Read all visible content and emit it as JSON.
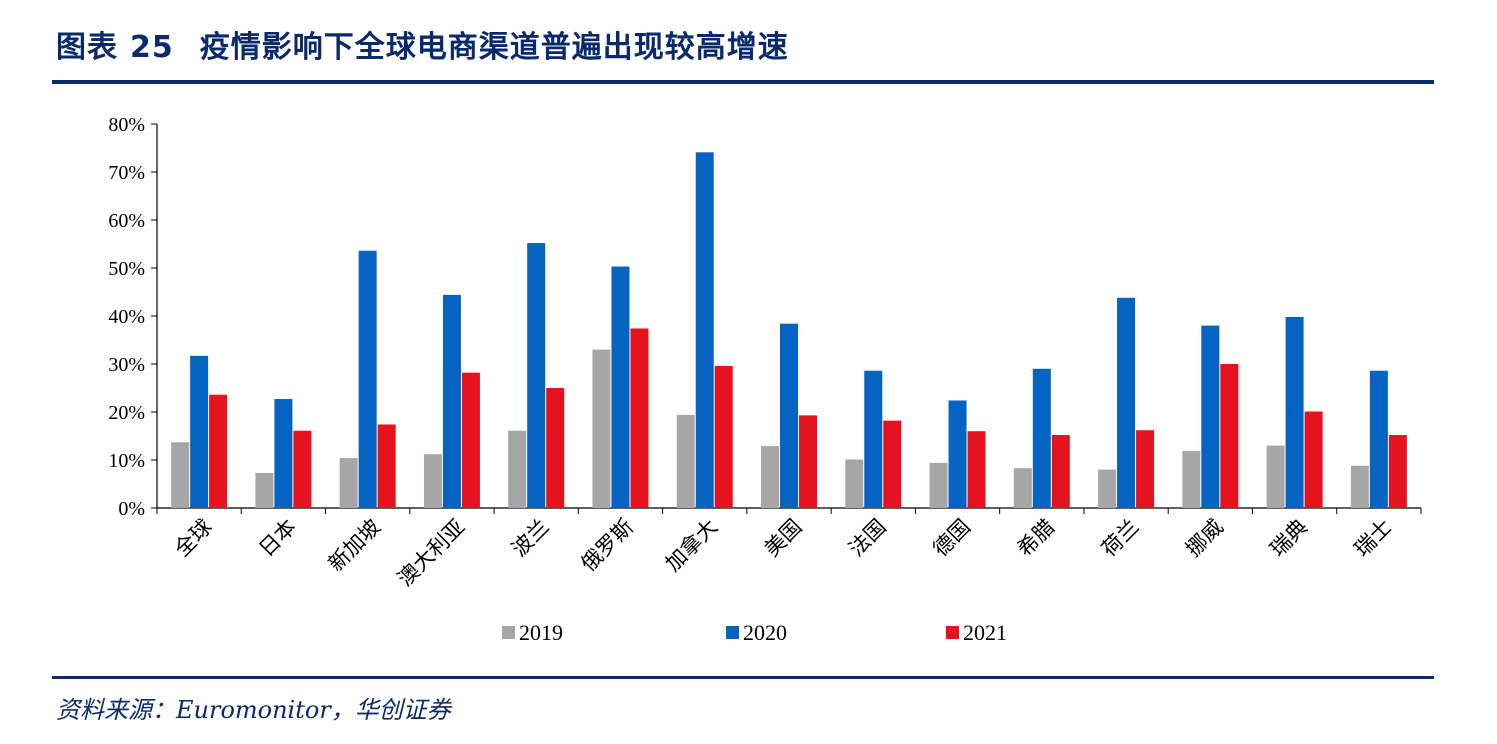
{
  "header": {
    "figure_label": "图表",
    "figure_number": "25",
    "title": "疫情影响下全球电商渠道普遍出现较高增速"
  },
  "footer": {
    "source": "资料来源：Euromonitor，华创证券"
  },
  "chart_data": {
    "type": "bar",
    "categories": [
      "全球",
      "日本",
      "新加坡",
      "澳大利亚",
      "波兰",
      "俄罗斯",
      "加拿大",
      "美国",
      "法国",
      "德国",
      "希腊",
      "荷兰",
      "挪威",
      "瑞典",
      "瑞士"
    ],
    "series": [
      {
        "name": "2019",
        "color": "#a6a6a6",
        "values": [
          13.7,
          7.3,
          10.4,
          11.2,
          16.1,
          33.0,
          19.4,
          12.9,
          10.1,
          9.4,
          8.3,
          8.0,
          11.9,
          13.0,
          8.8
        ]
      },
      {
        "name": "2020",
        "color": "#0563c1",
        "values": [
          31.7,
          22.7,
          53.6,
          44.4,
          55.2,
          50.3,
          74.1,
          38.4,
          28.6,
          22.4,
          29.0,
          43.8,
          38.0,
          39.8,
          28.6
        ]
      },
      {
        "name": "2021",
        "color": "#e4131e",
        "values": [
          23.6,
          16.1,
          17.4,
          28.2,
          25.0,
          37.4,
          29.6,
          19.3,
          18.2,
          16.0,
          15.2,
          16.2,
          30.0,
          20.1,
          15.2
        ]
      }
    ],
    "y_ticks": [
      "0%",
      "10%",
      "20%",
      "30%",
      "40%",
      "50%",
      "60%",
      "70%",
      "80%"
    ],
    "ylim": [
      0,
      80
    ],
    "legend_position": "bottom",
    "grid": false
  }
}
